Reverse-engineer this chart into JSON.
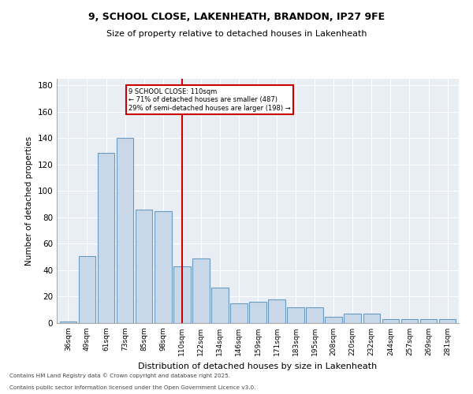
{
  "title_line1": "9, SCHOOL CLOSE, LAKENHEATH, BRANDON, IP27 9FE",
  "title_line2": "Size of property relative to detached houses in Lakenheath",
  "xlabel": "Distribution of detached houses by size in Lakenheath",
  "ylabel": "Number of detached properties",
  "categories": [
    "36sqm",
    "49sqm",
    "61sqm",
    "73sqm",
    "85sqm",
    "98sqm",
    "110sqm",
    "122sqm",
    "134sqm",
    "146sqm",
    "159sqm",
    "171sqm",
    "183sqm",
    "195sqm",
    "208sqm",
    "220sqm",
    "232sqm",
    "244sqm",
    "257sqm",
    "269sqm",
    "281sqm"
  ],
  "values": [
    1,
    51,
    129,
    140,
    86,
    85,
    43,
    49,
    27,
    15,
    16,
    18,
    12,
    12,
    5,
    7,
    7,
    3,
    3,
    3,
    3
  ],
  "bar_color": "#c8d8e8",
  "bar_edge_color": "#6a9abf",
  "marker_index": 6,
  "marker_label": "9 SCHOOL CLOSE: 110sqm",
  "pct_smaller": "71% of detached houses are smaller (487)",
  "pct_larger": "29% of semi-detached houses are larger (198)",
  "marker_color": "#cc0000",
  "ylim": [
    0,
    185
  ],
  "yticks": [
    0,
    20,
    40,
    60,
    80,
    100,
    120,
    140,
    160,
    180
  ],
  "annotation_box_color": "#cc0000",
  "bg_color": "#e8eef4",
  "footnote1": "Contains HM Land Registry data © Crown copyright and database right 2025.",
  "footnote2": "Contains public sector information licensed under the Open Government Licence v3.0."
}
